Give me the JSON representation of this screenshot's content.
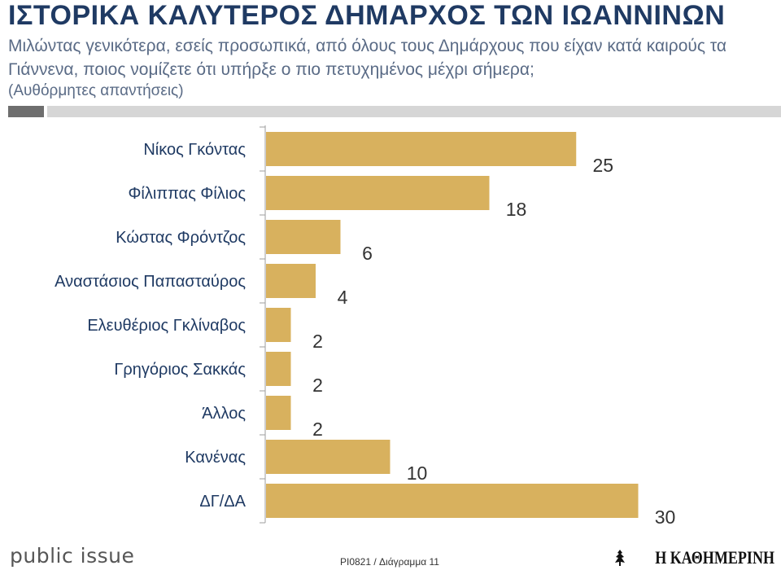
{
  "header": {
    "title": "ΙΣΤΟΡΙΚΑ ΚΑΛΥΤΕΡΟΣ ΔΗΜΑΡΧΟΣ ΤΩΝ ΙΩΑΝΝΙΝΩΝ",
    "subtitle": "Μιλώντας γενικότερα, εσείς προσωπικά, από όλους τους Δημάρχους που είχαν κατά καιρούς τα Γιάννενα, ποιος νομίζετε ότι υπήρξε ο πιο πετυχημένος μέχρι σήμερα;",
    "note": "(Αυθόρμητες απαντήσεις)"
  },
  "colors": {
    "bar": "#d8b15e",
    "title": "#1f3a63",
    "subtitle": "#5a6b86",
    "axis": "#9e9e9e",
    "label": "#1f3a63",
    "value": "#333333"
  },
  "chart_data": {
    "type": "bar",
    "orientation": "horizontal",
    "categories": [
      "Νίκος Γκόντας",
      "Φίλιππας Φίλιος",
      "Κώστας Φρόντζος",
      "Αναστάσιος Παπασταύρος",
      "Ελευθέριος Γκλίναβος",
      "Γρηγόριος Σακκάς",
      "Άλλος",
      "Κανένας",
      "ΔΓ/ΔΑ"
    ],
    "values": [
      25,
      18,
      6,
      4,
      2,
      2,
      2,
      10,
      30
    ],
    "data_labels": [
      "25",
      "18",
      "6",
      "4",
      "2",
      "2",
      "2",
      "10",
      "30"
    ],
    "xlim": [
      0,
      30
    ],
    "grid": false,
    "legend": "none"
  },
  "footer": {
    "brand": "public issue",
    "code": "PI0821 / Διάγραμμα 11",
    "logo": "Η ΚΑΘΗΜΕΡΙΝΗ",
    "logo_icon": "kathimerini-emblem-icon"
  }
}
